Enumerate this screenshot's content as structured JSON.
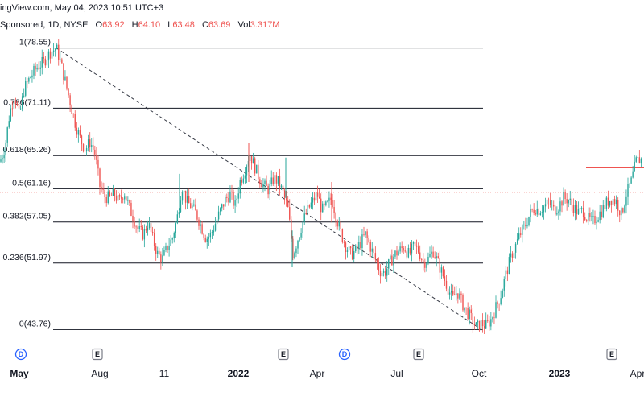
{
  "header": {
    "source_line": "ingView.com, May 04, 2023 10:51 UTC+3",
    "symbol_line": "Sponsored, 1D, NYSE",
    "ohlc": {
      "open_label": "O",
      "open": "63.92",
      "high_label": "H",
      "high": "64.10",
      "low_label": "L",
      "low": "63.48",
      "close_label": "C",
      "close": "63.69",
      "vol_label": "Vol",
      "vol": "3.317M"
    }
  },
  "colors": {
    "up": "#26a69a",
    "down": "#ef5350",
    "fib_line": "#131722",
    "trend_line": "#363a45",
    "current_price_line": "#ef5350",
    "event_dividend": "#2962ff",
    "event_earnings": "#787b86"
  },
  "chart_data": {
    "type": "candlestick",
    "y_range": [
      42.2,
      80.5
    ],
    "x_axis_labels": [
      {
        "label": "May",
        "bold": true
      },
      {
        "label": "Aug",
        "bold": false
      },
      {
        "label": "11",
        "bold": false
      },
      {
        "label": "2022",
        "bold": true
      },
      {
        "label": "Apr",
        "bold": false
      },
      {
        "label": "Jul",
        "bold": false
      },
      {
        "label": "Oct",
        "bold": false
      },
      {
        "label": "2023",
        "bold": true
      },
      {
        "label": "Apr",
        "bold": false
      }
    ],
    "fib_levels": [
      {
        "ratio": "1",
        "price": 78.55,
        "label": "1(78.55)"
      },
      {
        "ratio": "0.786",
        "price": 71.11,
        "label": "0.786(71.11)"
      },
      {
        "ratio": "0.618",
        "price": 65.26,
        "label": "0.618(65.26)"
      },
      {
        "ratio": "0.5",
        "price": 61.16,
        "label": "0.5(61.16)"
      },
      {
        "ratio": "0.382",
        "price": 57.05,
        "label": "0.382(57.05)"
      },
      {
        "ratio": "0.236",
        "price": 51.97,
        "label": "0.236(51.97)"
      },
      {
        "ratio": "0",
        "price": 43.76,
        "label": "0(43.76)"
      }
    ],
    "trend_line": {
      "from_price": 78.55,
      "to_price": 43.76
    },
    "current_price": 63.69,
    "events": [
      {
        "type": "dividend",
        "glyph": "D"
      },
      {
        "type": "earnings",
        "glyph": "E"
      },
      {
        "type": "earnings",
        "glyph": "E"
      },
      {
        "type": "dividend",
        "glyph": "D"
      },
      {
        "type": "earnings",
        "glyph": "E"
      },
      {
        "type": "earnings",
        "glyph": "E"
      }
    ],
    "price_path": [
      [
        0,
        64.5
      ],
      [
        6,
        66.2
      ],
      [
        12,
        70.5
      ],
      [
        18,
        72.8
      ],
      [
        24,
        70.1
      ],
      [
        30,
        73.5
      ],
      [
        38,
        75.0
      ],
      [
        46,
        76.2
      ],
      [
        54,
        76.8
      ],
      [
        62,
        78.0
      ],
      [
        70,
        78.55
      ],
      [
        76,
        76.5
      ],
      [
        82,
        74.0
      ],
      [
        88,
        71.5
      ],
      [
        94,
        69.0
      ],
      [
        100,
        67.2
      ],
      [
        106,
        66.0
      ],
      [
        112,
        67.0
      ],
      [
        118,
        65.5
      ],
      [
        124,
        61.5
      ],
      [
        130,
        60.2
      ],
      [
        136,
        60.0
      ],
      [
        142,
        60.5
      ],
      [
        148,
        59.5
      ],
      [
        154,
        60.8
      ],
      [
        160,
        59.0
      ],
      [
        166,
        57.5
      ],
      [
        172,
        56.0
      ],
      [
        178,
        55.5
      ],
      [
        184,
        57.0
      ],
      [
        190,
        54.8
      ],
      [
        196,
        53.0
      ],
      [
        202,
        52.5
      ],
      [
        208,
        54.0
      ],
      [
        214,
        55.0
      ],
      [
        220,
        57.5
      ],
      [
        226,
        61.5
      ],
      [
        232,
        59.5
      ],
      [
        238,
        59.0
      ],
      [
        244,
        58.0
      ],
      [
        250,
        56.5
      ],
      [
        256,
        55.0
      ],
      [
        262,
        55.5
      ],
      [
        268,
        57.0
      ],
      [
        274,
        58.5
      ],
      [
        280,
        59.8
      ],
      [
        286,
        60.5
      ],
      [
        292,
        59.0
      ],
      [
        298,
        62.0
      ],
      [
        304,
        63.5
      ],
      [
        310,
        65.5
      ],
      [
        316,
        64.0
      ],
      [
        322,
        62.5
      ],
      [
        328,
        61.5
      ],
      [
        334,
        61.0
      ],
      [
        340,
        62.5
      ],
      [
        346,
        62.0
      ],
      [
        352,
        60.5
      ],
      [
        358,
        58.5
      ],
      [
        364,
        53.0
      ],
      [
        370,
        55.0
      ],
      [
        376,
        57.0
      ],
      [
        382,
        58.5
      ],
      [
        388,
        59.5
      ],
      [
        394,
        60.5
      ],
      [
        400,
        58.5
      ],
      [
        406,
        59.0
      ],
      [
        412,
        60.0
      ],
      [
        418,
        57.5
      ],
      [
        424,
        55.5
      ],
      [
        430,
        54.0
      ],
      [
        436,
        53.0
      ],
      [
        442,
        53.5
      ],
      [
        448,
        54.5
      ],
      [
        454,
        55.5
      ],
      [
        460,
        54.0
      ],
      [
        466,
        52.5
      ],
      [
        472,
        51.0
      ],
      [
        478,
        50.8
      ],
      [
        484,
        52.0
      ],
      [
        490,
        53.0
      ],
      [
        496,
        53.5
      ],
      [
        502,
        54.0
      ],
      [
        508,
        53.0
      ],
      [
        514,
        54.0
      ],
      [
        520,
        53.5
      ],
      [
        526,
        52.0
      ],
      [
        532,
        52.5
      ],
      [
        538,
        53.5
      ],
      [
        544,
        52.0
      ],
      [
        550,
        50.5
      ],
      [
        556,
        49.0
      ],
      [
        562,
        47.5
      ],
      [
        568,
        48.5
      ],
      [
        574,
        47.0
      ],
      [
        580,
        46.0
      ],
      [
        586,
        45.0
      ],
      [
        592,
        44.0
      ],
      [
        598,
        44.5
      ],
      [
        604,
        44.2
      ],
      [
        610,
        45.0
      ],
      [
        616,
        46.5
      ],
      [
        622,
        48.0
      ],
      [
        628,
        50.5
      ],
      [
        634,
        52.5
      ],
      [
        640,
        54.0
      ],
      [
        646,
        55.5
      ],
      [
        652,
        56.5
      ],
      [
        658,
        58.0
      ],
      [
        664,
        58.8
      ],
      [
        670,
        58.5
      ],
      [
        676,
        59.0
      ],
      [
        682,
        59.5
      ],
      [
        688,
        58.5
      ],
      [
        694,
        59.0
      ],
      [
        700,
        60.0
      ],
      [
        706,
        59.8
      ],
      [
        712,
        59.0
      ],
      [
        718,
        58.2
      ],
      [
        724,
        58.5
      ],
      [
        730,
        57.5
      ],
      [
        736,
        57.0
      ],
      [
        742,
        57.8
      ],
      [
        748,
        58.5
      ],
      [
        754,
        59.5
      ],
      [
        760,
        60.0
      ],
      [
        766,
        59.5
      ],
      [
        772,
        58.0
      ],
      [
        778,
        60.5
      ],
      [
        784,
        62.0
      ],
      [
        790,
        64.5
      ],
      [
        796,
        64.8
      ],
      [
        800,
        64.5
      ]
    ]
  }
}
